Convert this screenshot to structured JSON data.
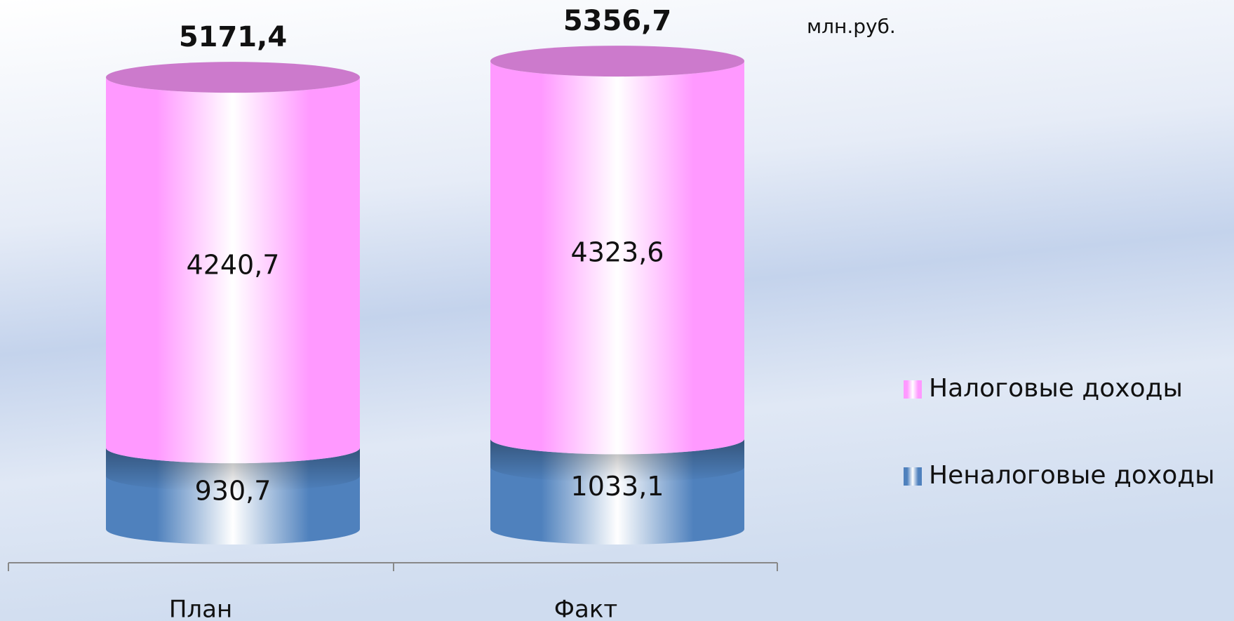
{
  "chart_data": {
    "type": "stacked_cylinder",
    "unit_label": "млн.руб.",
    "categories": [
      "План",
      "Факт"
    ],
    "series": [
      {
        "name": "Неналоговые доходы",
        "color": "#4f81bd",
        "values": [
          930.7,
          1033.1
        ],
        "value_labels": [
          "930,7",
          "1033,1"
        ]
      },
      {
        "name": "Налоговые доходы",
        "color": "#ff99ff",
        "values": [
          4240.7,
          4323.6
        ],
        "value_labels": [
          "4240,7",
          "4323,6"
        ]
      }
    ],
    "totals": [
      5171.4,
      5356.7
    ],
    "total_labels": [
      "5171,4",
      "5356,7"
    ],
    "legend": "right"
  }
}
